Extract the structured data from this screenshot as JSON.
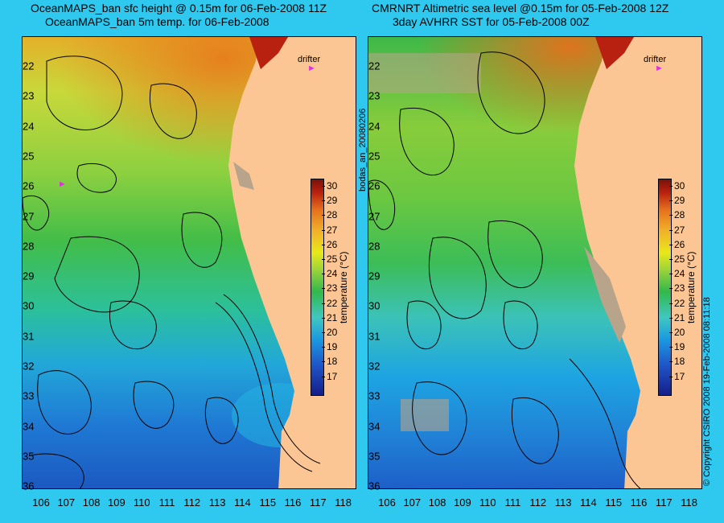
{
  "left_panel": {
    "title_line1": "OceanMAPS_ban sfc height @ 0.15m for 06-Feb-2008 11Z",
    "title_line2": "OceanMAPS_ban 5m temp. for 06-Feb-2008",
    "side_label": "bodas_an_20080206",
    "drifter_label": "drifter",
    "drifter_symbol": "►",
    "colorbar_label": "temperature (°C)"
  },
  "right_panel": {
    "title_line1": "CMRNRT Altimetric sea level  @0.15m  for 05-Feb-2008 12Z",
    "title_line2": "3day AVHRR SST for 05-Feb-2008 00Z",
    "side_label": "© Copyright CSIRO 2008    19-Feb-2008 08:11:18",
    "drifter_label": "drifter",
    "drifter_symbol": "►",
    "colorbar_label": "temperature (°C)"
  },
  "axes": {
    "lon_ticks": [
      "106",
      "107",
      "108",
      "109",
      "110",
      "111",
      "112",
      "113",
      "114",
      "115",
      "116",
      "117",
      "118"
    ],
    "lat_ticks": [
      "22",
      "23",
      "24",
      "25",
      "26",
      "27",
      "28",
      "29",
      "30",
      "31",
      "32",
      "33",
      "34",
      "35",
      "36"
    ],
    "colorbar_ticks": [
      "30",
      "29",
      "28",
      "27",
      "26",
      "25",
      "24",
      "23",
      "22",
      "21",
      "20",
      "19",
      "18",
      "17"
    ]
  },
  "colors": {
    "background": "#2fc8ef",
    "land": "#fcc694",
    "drifter": "#e030e0"
  }
}
